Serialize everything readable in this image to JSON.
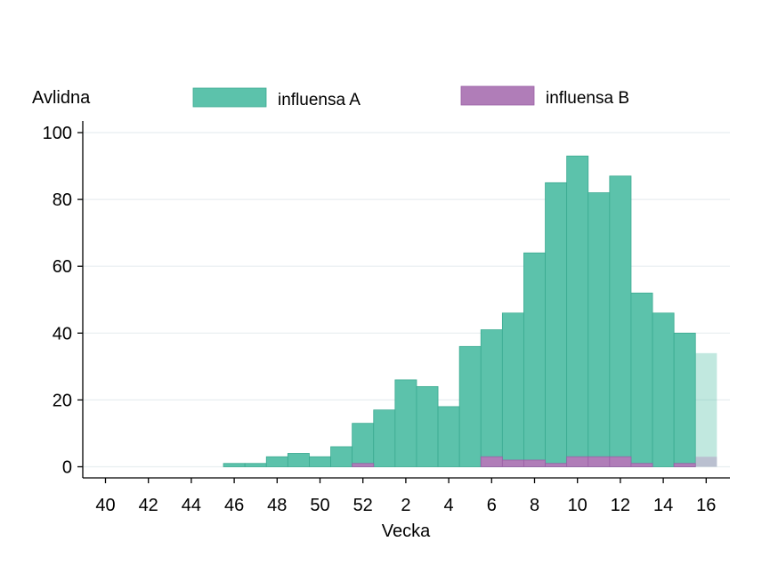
{
  "chart_data": {
    "type": "bar",
    "stacked": false,
    "ylabel": "Avlidna",
    "xlabel": "Vecka",
    "ylim": [
      0,
      100
    ],
    "yticks": [
      0,
      20,
      40,
      60,
      80,
      100
    ],
    "grid": true,
    "legend_position": "top",
    "weeks": [
      40,
      41,
      42,
      43,
      44,
      45,
      46,
      47,
      48,
      49,
      50,
      51,
      52,
      1,
      2,
      3,
      4,
      5,
      6,
      7,
      8,
      9,
      10,
      11,
      12,
      13,
      14,
      15,
      16
    ],
    "xtick_labels": [
      "40",
      "42",
      "44",
      "46",
      "48",
      "50",
      "52",
      "2",
      "4",
      "6",
      "8",
      "10",
      "12",
      "14",
      "16"
    ],
    "series": [
      {
        "name": "influensa A",
        "color": "#5cc2ab",
        "values": [
          0,
          0,
          0,
          0,
          0,
          0,
          1,
          1,
          3,
          4,
          3,
          6,
          13,
          17,
          26,
          24,
          18,
          36,
          41,
          46,
          64,
          85,
          93,
          82,
          87,
          52,
          46,
          40,
          34
        ]
      },
      {
        "name": "influensa B",
        "color": "#b07db8",
        "values": [
          0,
          0,
          0,
          0,
          0,
          0,
          0,
          0,
          0,
          0,
          0,
          0,
          1,
          0,
          0,
          0,
          0,
          0,
          3,
          2,
          2,
          1,
          3,
          3,
          3,
          1,
          0,
          1,
          3
        ]
      }
    ],
    "preliminary_weeks": [
      16
    ]
  }
}
